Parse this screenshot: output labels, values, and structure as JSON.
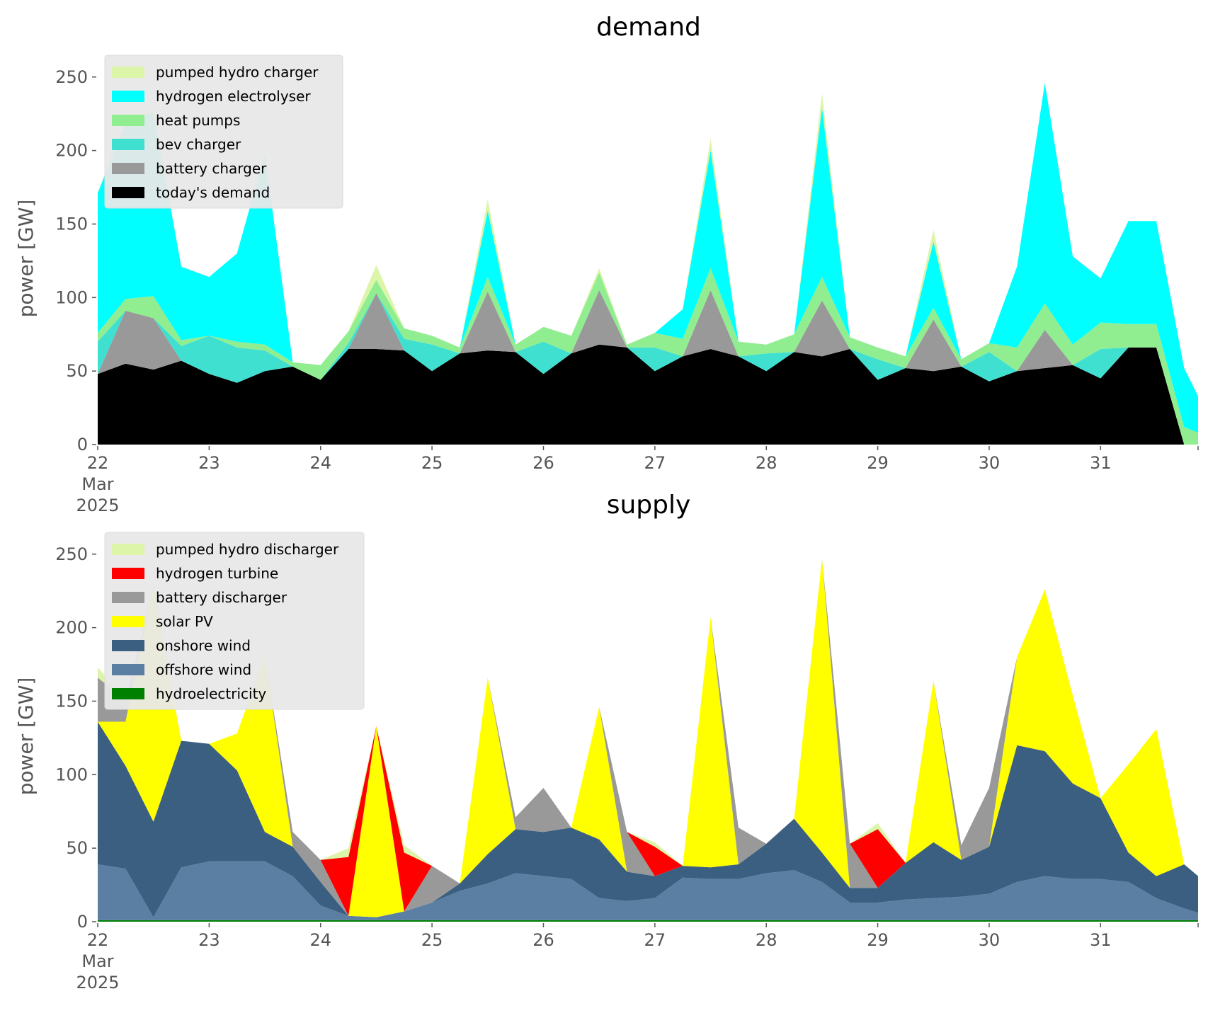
{
  "chart_data": [
    {
      "type": "area",
      "stacked": true,
      "title": "demand",
      "ylabel": "power [GW]",
      "xlabel": "",
      "ylim": [
        0,
        260
      ],
      "xlim": [
        "2025-03-22 00:00",
        "2025-03-31 21:00"
      ],
      "yticks": [
        0,
        50,
        100,
        150,
        200,
        250
      ],
      "xtick_labels": [
        "22\nMar\n2025",
        "23",
        "24",
        "25",
        "26",
        "27",
        "28",
        "29",
        "30",
        "31"
      ],
      "xtick_days": [
        0,
        1,
        2,
        3,
        4,
        5,
        6,
        7,
        8,
        9
      ],
      "legend_position": "upper-left",
      "grid": false,
      "x": [
        0,
        0.25,
        0.5,
        0.75,
        1,
        1.25,
        1.5,
        1.75,
        2,
        2.25,
        2.5,
        2.75,
        3,
        3.25,
        3.5,
        3.75,
        4,
        4.25,
        4.5,
        4.75,
        5,
        5.25,
        5.5,
        5.75,
        6,
        6.25,
        6.5,
        6.75,
        7,
        7.25,
        7.5,
        7.75,
        8,
        8.25,
        8.5,
        8.75,
        9,
        9.25,
        9.5,
        9.75,
        9.875
      ],
      "series": [
        {
          "name": "today's demand",
          "color": "#000000",
          "values": [
            48,
            55,
            51,
            57,
            48,
            42,
            50,
            53,
            44,
            65,
            65,
            64,
            50,
            62,
            64,
            63,
            48,
            62,
            68,
            66,
            50,
            60,
            65,
            60,
            50,
            63,
            60,
            65,
            44,
            52,
            50,
            53,
            43,
            50,
            52,
            54,
            45,
            66,
            66,
            0,
            0
          ]
        },
        {
          "name": "battery charger",
          "color": "#999999",
          "values": [
            0,
            36,
            35,
            0,
            0,
            0,
            0,
            0,
            0,
            0,
            38,
            0,
            0,
            0,
            40,
            0,
            0,
            0,
            37,
            0,
            0,
            0,
            40,
            0,
            0,
            0,
            38,
            0,
            0,
            0,
            35,
            0,
            0,
            0,
            26,
            0,
            0,
            0,
            0,
            0,
            0
          ]
        },
        {
          "name": "bev charger",
          "color": "#40e0d0",
          "values": [
            22,
            0,
            0,
            10,
            26,
            24,
            14,
            0,
            0,
            4,
            0,
            8,
            18,
            0,
            0,
            0,
            22,
            0,
            0,
            0,
            16,
            0,
            0,
            0,
            12,
            0,
            0,
            0,
            14,
            0,
            0,
            0,
            20,
            0,
            0,
            0,
            20,
            0,
            0,
            0,
            0
          ]
        },
        {
          "name": "heat pumps",
          "color": "#90ee90",
          "values": [
            6,
            8,
            15,
            4,
            0,
            4,
            4,
            3,
            10,
            8,
            9,
            7,
            6,
            4,
            10,
            5,
            10,
            12,
            12,
            2,
            10,
            12,
            15,
            10,
            6,
            12,
            16,
            8,
            8,
            8,
            8,
            5,
            6,
            16,
            18,
            14,
            18,
            16,
            16,
            12,
            8
          ]
        },
        {
          "name": "hydrogen electrolyser",
          "color": "#00ffff",
          "values": [
            95,
            120,
            125,
            50,
            40,
            60,
            130,
            0,
            0,
            0,
            0,
            0,
            0,
            0,
            45,
            0,
            0,
            0,
            0,
            0,
            0,
            20,
            80,
            0,
            0,
            0,
            115,
            0,
            0,
            0,
            45,
            0,
            0,
            55,
            150,
            60,
            30,
            70,
            70,
            40,
            25
          ]
        },
        {
          "name": "pumped hydro charger",
          "color": "#dcf5a9",
          "values": [
            0,
            3,
            3,
            0,
            0,
            0,
            0,
            0,
            0,
            0,
            10,
            0,
            0,
            0,
            8,
            0,
            0,
            0,
            3,
            0,
            0,
            0,
            8,
            0,
            0,
            0,
            10,
            0,
            0,
            0,
            8,
            0,
            0,
            0,
            0,
            0,
            0,
            0,
            0,
            0,
            0
          ]
        }
      ]
    },
    {
      "type": "area",
      "stacked": true,
      "title": "supply",
      "ylabel": "power [GW]",
      "xlabel": "",
      "ylim": [
        0,
        260
      ],
      "xlim": [
        "2025-03-22 00:00",
        "2025-03-31 21:00"
      ],
      "yticks": [
        0,
        50,
        100,
        150,
        200,
        250
      ],
      "xtick_labels": [
        "22\nMar\n2025",
        "23",
        "24",
        "25",
        "26",
        "27",
        "28",
        "29",
        "30",
        "31"
      ],
      "xtick_days": [
        0,
        1,
        2,
        3,
        4,
        5,
        6,
        7,
        8,
        9
      ],
      "legend_position": "upper-left",
      "grid": false,
      "x": [
        0,
        0.25,
        0.5,
        0.75,
        1,
        1.25,
        1.5,
        1.75,
        2,
        2.25,
        2.5,
        2.75,
        3,
        3.25,
        3.5,
        3.75,
        4,
        4.25,
        4.5,
        4.75,
        5,
        5.25,
        5.5,
        5.75,
        6,
        6.25,
        6.5,
        6.75,
        7,
        7.25,
        7.5,
        7.75,
        8,
        8.25,
        8.5,
        8.75,
        9,
        9.25,
        9.5,
        9.75,
        9.875
      ],
      "series": [
        {
          "name": "hydroelectricity",
          "color": "#008000",
          "values": [
            1,
            1,
            1,
            1,
            1,
            1,
            1,
            1,
            1,
            1,
            1,
            1,
            1,
            1,
            1,
            1,
            1,
            1,
            1,
            1,
            1,
            1,
            1,
            1,
            1,
            1,
            1,
            1,
            1,
            1,
            1,
            1,
            1,
            1,
            1,
            1,
            1,
            1,
            1,
            1,
            1
          ]
        },
        {
          "name": "offshore wind",
          "color": "#5b7fa3",
          "values": [
            38,
            35,
            2,
            36,
            40,
            40,
            40,
            30,
            10,
            3,
            2,
            6,
            12,
            20,
            25,
            32,
            30,
            28,
            15,
            13,
            15,
            29,
            28,
            28,
            32,
            34,
            26,
            12,
            12,
            14,
            15,
            16,
            18,
            26,
            30,
            28,
            28,
            26,
            15,
            8,
            5
          ]
        },
        {
          "name": "onshore wind",
          "color": "#3b5f80",
          "values": [
            97,
            70,
            65,
            86,
            80,
            62,
            20,
            20,
            16,
            0,
            0,
            0,
            0,
            5,
            20,
            30,
            30,
            35,
            40,
            20,
            15,
            8,
            8,
            10,
            20,
            35,
            20,
            10,
            10,
            25,
            38,
            25,
            32,
            93,
            85,
            65,
            55,
            20,
            15,
            30,
            25
          ]
        },
        {
          "name": "solar PV",
          "color": "#ffff00",
          "values": [
            0,
            30,
            160,
            0,
            0,
            25,
            120,
            0,
            0,
            0,
            130,
            0,
            0,
            0,
            120,
            0,
            0,
            0,
            90,
            0,
            0,
            0,
            170,
            0,
            0,
            0,
            200,
            0,
            0,
            0,
            110,
            0,
            0,
            60,
            110,
            60,
            0,
            60,
            100,
            0,
            0
          ]
        },
        {
          "name": "battery discharger",
          "color": "#999999",
          "values": [
            30,
            15,
            0,
            0,
            0,
            0,
            0,
            10,
            15,
            0,
            0,
            0,
            25,
            0,
            0,
            8,
            30,
            0,
            0,
            27,
            0,
            0,
            0,
            25,
            0,
            0,
            0,
            30,
            0,
            0,
            0,
            10,
            40,
            0,
            0,
            0,
            0,
            0,
            0,
            0,
            0
          ]
        },
        {
          "name": "hydrogen turbine",
          "color": "#ff0000",
          "values": [
            0,
            0,
            0,
            0,
            0,
            0,
            0,
            0,
            0,
            40,
            0,
            40,
            0,
            0,
            0,
            0,
            0,
            0,
            0,
            0,
            20,
            0,
            0,
            0,
            0,
            0,
            0,
            0,
            40,
            0,
            0,
            0,
            0,
            0,
            0,
            0,
            0,
            0,
            0,
            0,
            0
          ]
        },
        {
          "name": "pumped hydro discharger",
          "color": "#dcf5a9",
          "values": [
            7,
            0,
            2,
            0,
            0,
            0,
            0,
            0,
            0,
            6,
            0,
            5,
            0,
            0,
            0,
            0,
            0,
            0,
            0,
            0,
            3,
            0,
            0,
            0,
            0,
            0,
            0,
            0,
            4,
            0,
            0,
            0,
            0,
            0,
            0,
            0,
            0,
            0,
            0,
            0,
            0
          ]
        }
      ]
    }
  ]
}
